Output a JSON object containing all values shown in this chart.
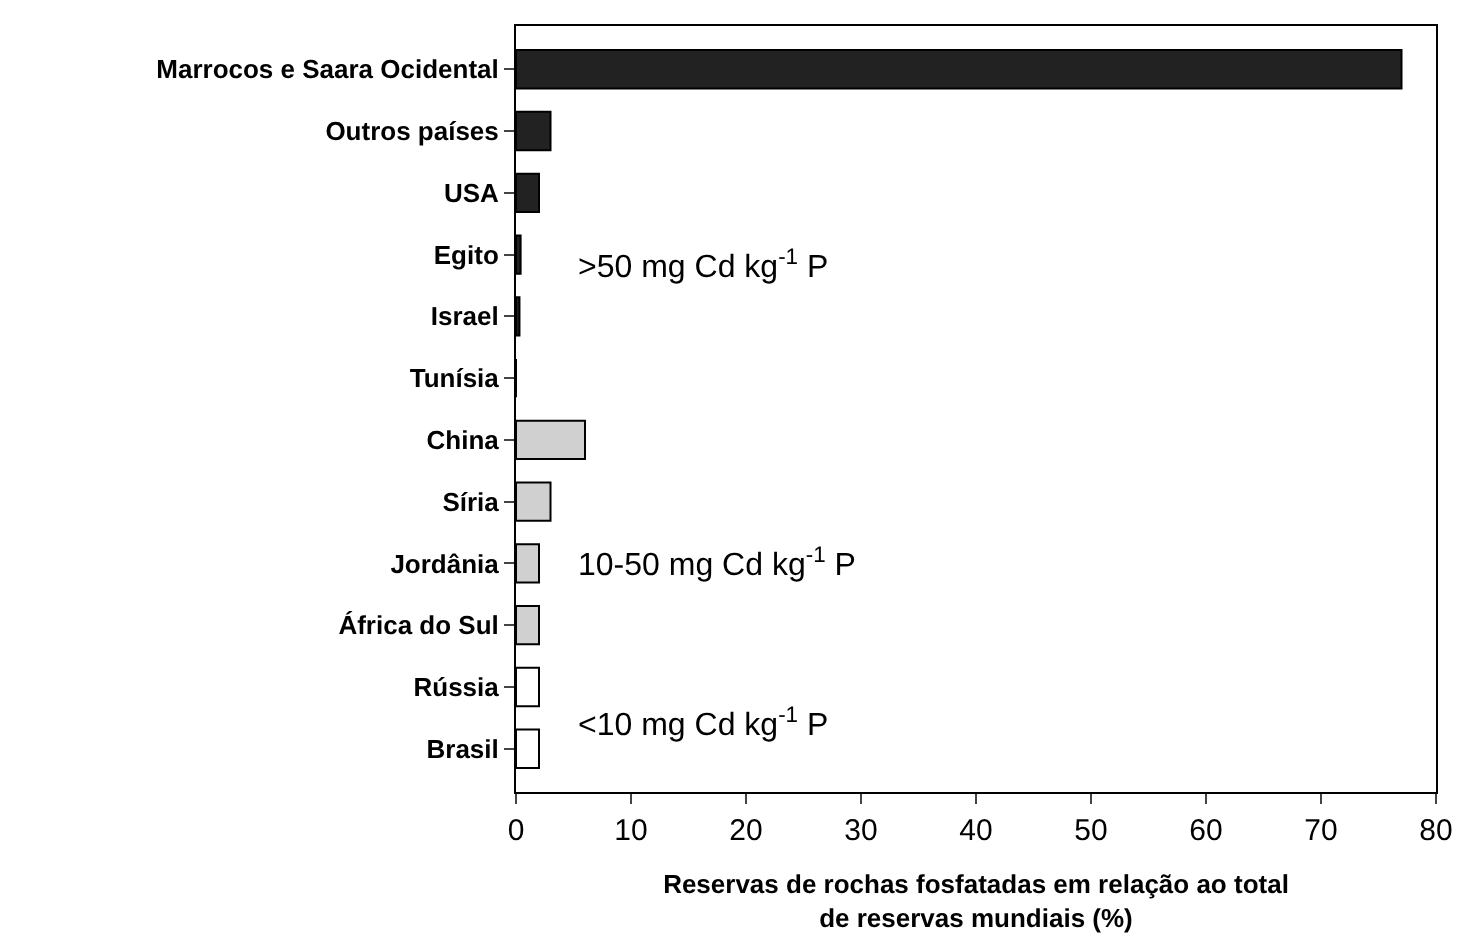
{
  "chart_data": {
    "type": "bar",
    "orientation": "horizontal",
    "xlabel": "Reservas de rochas fosfatadas em relação ao total\nde reservas mundiais (%)",
    "categories": [
      "Marrocos e Saara Ocidental",
      "Outros países",
      "USA",
      "Egito",
      "Israel",
      "Tunísia",
      "China",
      "Síria",
      "Jordânia",
      "África do Sul",
      "Rússia",
      "Brasil"
    ],
    "values": [
      77,
      3,
      2,
      0.4,
      0.3,
      0,
      6,
      3,
      2,
      2,
      2,
      2
    ],
    "colors": [
      "#222222",
      "#222222",
      "#222222",
      "#222222",
      "#222222",
      "#222222",
      "#d0d0d0",
      "#d0d0d0",
      "#d0d0d0",
      "#d0d0d0",
      "#ffffff",
      "#ffffff"
    ],
    "xlim": [
      0,
      80
    ],
    "xticks": [
      0,
      10,
      20,
      30,
      40,
      50,
      60,
      70,
      80
    ],
    "annotations": [
      ">50 mg Cd kg$^{-1}$ P",
      "10-50 mg Cd kg$^{-1}$ P",
      "<10 mg Cd kg$^{-1}$ P"
    ]
  }
}
